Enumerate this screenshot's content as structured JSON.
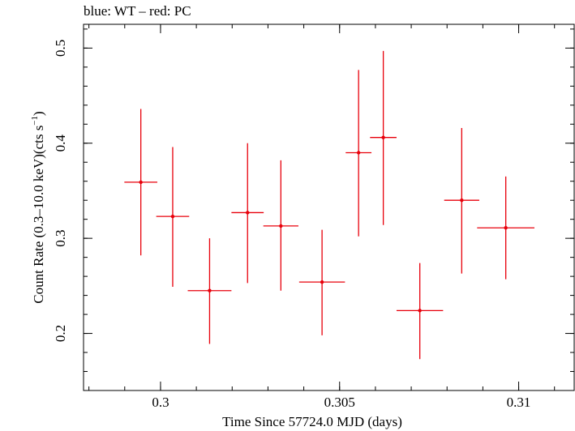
{
  "title": "blue: WT – red: PC",
  "chart_data": {
    "type": "scatter",
    "title": "blue: WT – red: PC",
    "xlabel": "Time Since 57724.0 MJD (days)",
    "ylabel_main": "Count Rate (0.3–10.0 keV)(cts s",
    "ylabel_sup": "−1",
    "ylabel_end": ")",
    "xlim": [
      0.29785,
      0.31155
    ],
    "ylim": [
      0.14,
      0.525
    ],
    "x_major_ticks": [
      {
        "value": 0.3,
        "label": "0.3"
      },
      {
        "value": 0.305,
        "label": "0.305"
      },
      {
        "value": 0.31,
        "label": "0.31"
      }
    ],
    "x_minor_step": 0.001,
    "y_major_ticks": [
      {
        "value": 0.2,
        "label": "0.2"
      },
      {
        "value": 0.3,
        "label": "0.3"
      },
      {
        "value": 0.4,
        "label": "0.4"
      },
      {
        "value": 0.5,
        "label": "0.5"
      }
    ],
    "y_minor_step": 0.02,
    "color": "#e8000b",
    "series": [
      {
        "points": [
          {
            "x": 0.29945,
            "y": 0.359,
            "xerr": 0.00046,
            "ylo": 0.282,
            "yhi": 0.436
          },
          {
            "x": 0.30034,
            "y": 0.323,
            "xerr": 0.00046,
            "ylo": 0.249,
            "yhi": 0.396
          },
          {
            "x": 0.30137,
            "y": 0.245,
            "xerr": 0.00061,
            "ylo": 0.189,
            "yhi": 0.3
          },
          {
            "x": 0.30243,
            "y": 0.327,
            "xerr": 0.00045,
            "ylo": 0.253,
            "yhi": 0.4
          },
          {
            "x": 0.30336,
            "y": 0.313,
            "xerr": 0.00049,
            "ylo": 0.245,
            "yhi": 0.382
          },
          {
            "x": 0.30451,
            "y": 0.254,
            "xerr": 0.00064,
            "ylo": 0.198,
            "yhi": 0.309
          },
          {
            "x": 0.30553,
            "y": 0.39,
            "xerr": 0.00036,
            "ylo": 0.302,
            "yhi": 0.477
          },
          {
            "x": 0.30622,
            "y": 0.406,
            "xerr": 0.00037,
            "ylo": 0.314,
            "yhi": 0.497
          },
          {
            "x": 0.30724,
            "y": 0.224,
            "xerr": 0.00065,
            "ylo": 0.173,
            "yhi": 0.274
          },
          {
            "x": 0.30841,
            "y": 0.34,
            "xerr": 0.00049,
            "ylo": 0.263,
            "yhi": 0.416
          },
          {
            "x": 0.30964,
            "y": 0.311,
            "xerr": 0.0008,
            "ylo": 0.257,
            "yhi": 0.365
          }
        ]
      }
    ]
  }
}
